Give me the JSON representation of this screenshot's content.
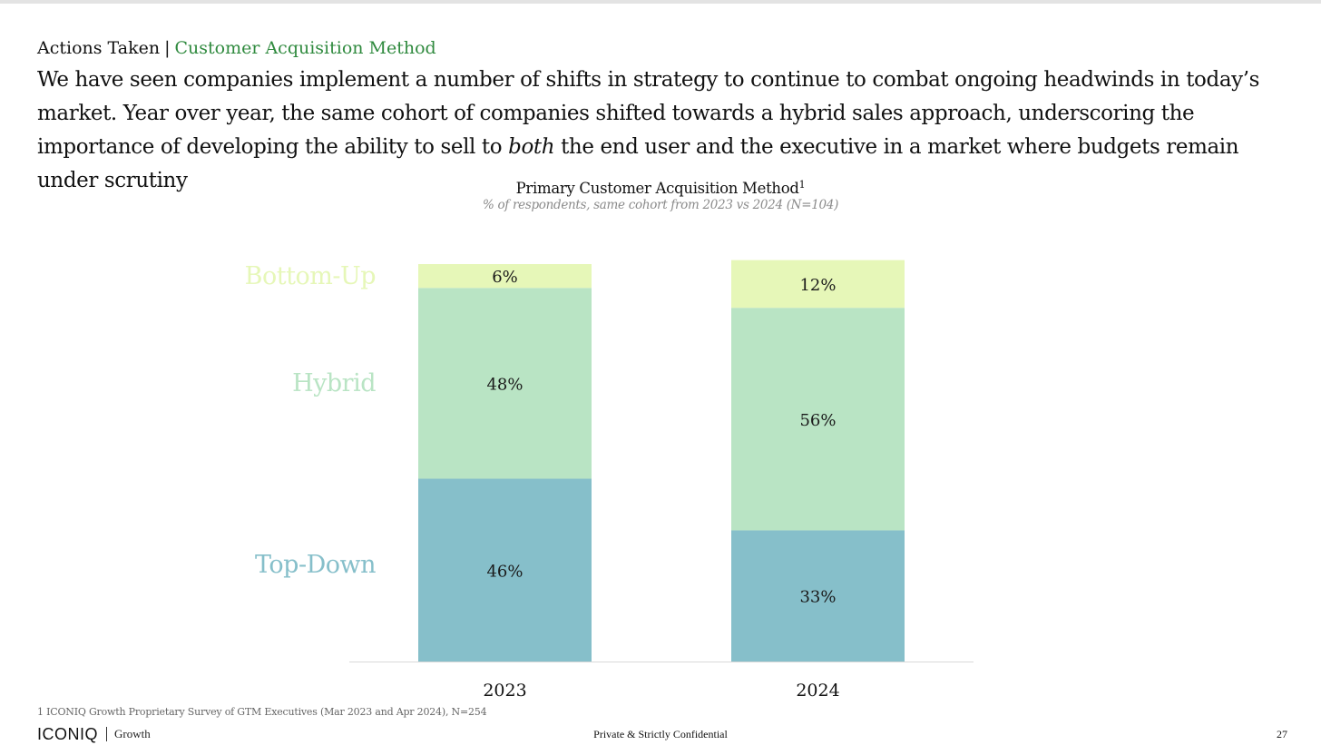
{
  "header": {
    "section": "Actions Taken",
    "separator": "|",
    "subsection": "Customer Acquisition Method",
    "headline_before": "We have seen companies implement a number of shifts in strategy to continue to combat ongoing headwinds in today’s market. Year over year, the same cohort of companies shifted towards a hybrid sales approach, underscoring the importance of developing the ability to sell to ",
    "headline_emphasis": "both",
    "headline_after": " the end user and the executive in a market where budgets remain under scrutiny"
  },
  "chart_data": {
    "type": "bar",
    "stacked": true,
    "title": "Primary Customer Acquisition Method",
    "title_footnote_marker": "1",
    "subtitle": "% of respondents, same cohort from 2023 vs 2024 (N=104)",
    "categories": [
      "2023",
      "2024"
    ],
    "series": [
      {
        "name": "Top-Down",
        "values": [
          46,
          33
        ],
        "labels": [
          "46%",
          "33%"
        ],
        "color": "#86bfca"
      },
      {
        "name": "Hybrid",
        "values": [
          48,
          56
        ],
        "labels": [
          "48%",
          "56%"
        ],
        "color": "#b9e4c4"
      },
      {
        "name": "Bottom-Up",
        "values": [
          6,
          12
        ],
        "labels": [
          "6%",
          "12%"
        ],
        "color": "#e6f7b8"
      }
    ],
    "ylim": [
      0,
      100
    ],
    "legend": "left",
    "grid": false,
    "unit": "%"
  },
  "footer": {
    "footnote": "1 ICONIQ Growth Proprietary Survey of GTM Executives (Mar 2023 and Apr 2024), N=254",
    "brand": "ICONIQ",
    "brand_sub": "Growth",
    "confidential": "Private & Strictly Confidential",
    "page": "27"
  },
  "colors": {
    "accent": "#2f8a3e",
    "axis": "#d9d9d9"
  }
}
